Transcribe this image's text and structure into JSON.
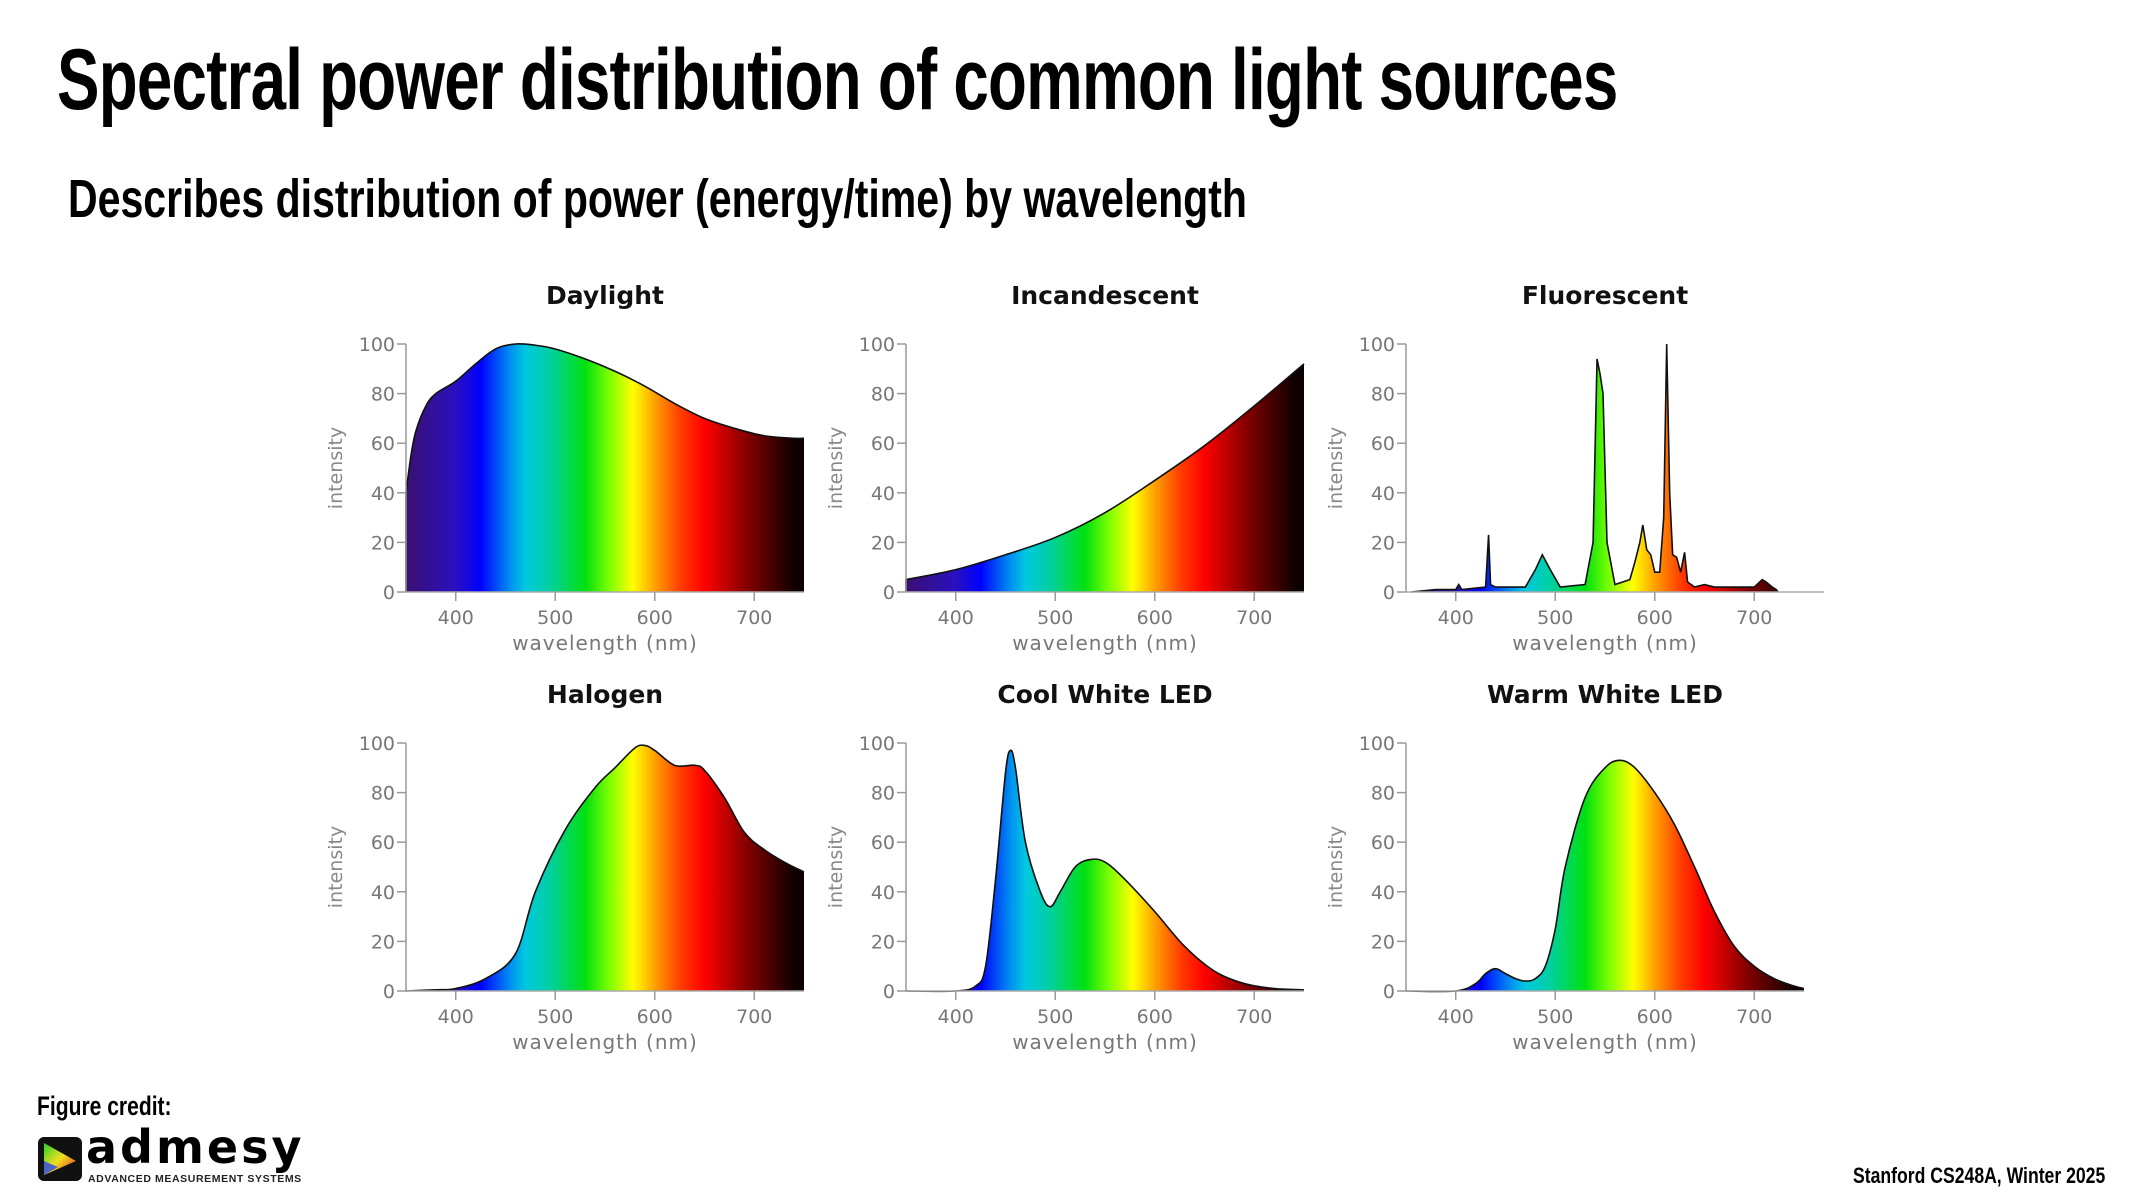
{
  "slide": {
    "title": "Spectral power distribution of common light sources",
    "subtitle": "Describes distribution of power (energy/time) by wavelength",
    "figure_credit_label": "Figure credit:",
    "logo": {
      "name": "admesy",
      "tagline": "ADVANCED MEASUREMENT SYSTEMS"
    },
    "footer": "Stanford CS248A, Winter 2025"
  },
  "chart_data": [
    {
      "type": "area",
      "title": "Daylight",
      "xlabel": "wavelength (nm)",
      "ylabel": "intensity",
      "xlim": [
        350,
        750
      ],
      "ylim": [
        0,
        100
      ],
      "xticks": [
        400,
        500,
        600,
        700
      ],
      "yticks": [
        0,
        20,
        40,
        60,
        80,
        100
      ],
      "fill": "visible-spectrum gradient",
      "x": [
        350,
        355,
        360,
        370,
        380,
        400,
        420,
        440,
        460,
        480,
        500,
        530,
        560,
        590,
        620,
        650,
        680,
        710,
        740,
        750
      ],
      "y": [
        40,
        55,
        65,
        75,
        80,
        85,
        92,
        98,
        100,
        99.5,
        98,
        94,
        89,
        83,
        76,
        70,
        66,
        63,
        62,
        62
      ]
    },
    {
      "type": "area",
      "title": "Incandescent",
      "xlabel": "wavelength (nm)",
      "ylabel": "intensity",
      "xlim": [
        350,
        750
      ],
      "ylim": [
        0,
        100
      ],
      "xticks": [
        400,
        500,
        600,
        700
      ],
      "yticks": [
        0,
        20,
        40,
        60,
        80,
        100
      ],
      "fill": "visible-spectrum gradient",
      "x": [
        350,
        400,
        450,
        500,
        550,
        600,
        650,
        700,
        750
      ],
      "y": [
        5,
        9,
        15,
        22,
        32,
        45,
        59,
        75,
        92
      ]
    },
    {
      "type": "area",
      "title": "Fluorescent",
      "xlabel": "wavelength (nm)",
      "ylabel": "intensity",
      "xlim": [
        350,
        770
      ],
      "ylim": [
        0,
        100
      ],
      "xticks": [
        400,
        500,
        600,
        700
      ],
      "yticks": [
        0,
        20,
        40,
        60,
        80,
        100
      ],
      "fill": "visible-spectrum gradient",
      "x": [
        355,
        380,
        400,
        403,
        406,
        430,
        433,
        435,
        440,
        470,
        480,
        487,
        495,
        505,
        530,
        538,
        542,
        545,
        548,
        552,
        560,
        575,
        580,
        585,
        588,
        592,
        596,
        600,
        605,
        609,
        612,
        615,
        618,
        622,
        626,
        630,
        633,
        640,
        650,
        660,
        700,
        708,
        712,
        718,
        722,
        724
      ],
      "y": [
        0,
        1,
        1,
        3,
        1,
        2,
        23,
        3,
        2,
        2,
        9,
        15,
        9,
        2,
        3,
        20,
        94,
        88,
        80,
        20,
        3,
        5,
        12,
        20,
        27,
        17,
        15,
        8,
        8,
        30,
        100,
        40,
        15,
        14,
        8,
        16,
        4,
        2,
        3,
        2,
        2,
        5,
        4,
        2,
        1,
        0
      ]
    },
    {
      "type": "area",
      "title": "Halogen",
      "xlabel": "wavelength (nm)",
      "ylabel": "intensity",
      "xlim": [
        350,
        750
      ],
      "ylim": [
        0,
        100
      ],
      "xticks": [
        400,
        500,
        600,
        700
      ],
      "yticks": [
        0,
        20,
        40,
        60,
        80,
        100
      ],
      "fill": "visible-spectrum gradient",
      "x": [
        350,
        380,
        400,
        430,
        460,
        480,
        510,
        540,
        560,
        580,
        590,
        600,
        620,
        640,
        650,
        670,
        690,
        710,
        730,
        750
      ],
      "y": [
        0,
        0.5,
        1,
        5,
        15,
        40,
        65,
        82,
        90,
        98,
        99,
        97,
        91,
        91,
        89,
        78,
        64,
        57,
        52,
        48
      ]
    },
    {
      "type": "area",
      "title": "Cool White LED",
      "xlabel": "wavelength (nm)",
      "ylabel": "intensity",
      "xlim": [
        350,
        750
      ],
      "ylim": [
        0,
        100
      ],
      "xticks": [
        400,
        500,
        600,
        700
      ],
      "yticks": [
        0,
        20,
        40,
        60,
        80,
        100
      ],
      "fill": "visible-spectrum gradient",
      "x": [
        350,
        400,
        420,
        430,
        440,
        450,
        455,
        460,
        470,
        485,
        495,
        505,
        520,
        535,
        550,
        570,
        600,
        630,
        660,
        690,
        720,
        750
      ],
      "y": [
        0,
        0,
        2,
        10,
        45,
        88,
        97,
        90,
        60,
        40,
        34,
        40,
        50,
        53,
        52,
        45,
        32,
        18,
        8,
        3,
        1,
        0.5
      ]
    },
    {
      "type": "area",
      "title": "Warm White LED",
      "xlabel": "wavelength (nm)",
      "ylabel": "intensity",
      "xlim": [
        350,
        750
      ],
      "ylim": [
        0,
        100
      ],
      "xticks": [
        400,
        500,
        600,
        700
      ],
      "yticks": [
        0,
        20,
        40,
        60,
        80,
        100
      ],
      "fill": "visible-spectrum gradient",
      "x": [
        350,
        400,
        420,
        430,
        440,
        450,
        460,
        470,
        480,
        490,
        500,
        510,
        530,
        550,
        565,
        580,
        600,
        620,
        640,
        660,
        680,
        700,
        720,
        740,
        750
      ],
      "y": [
        0,
        0,
        3,
        7,
        9,
        7,
        5,
        4,
        5,
        10,
        25,
        50,
        78,
        90,
        93,
        90,
        80,
        67,
        50,
        32,
        18,
        10,
        5,
        2,
        1
      ]
    }
  ]
}
